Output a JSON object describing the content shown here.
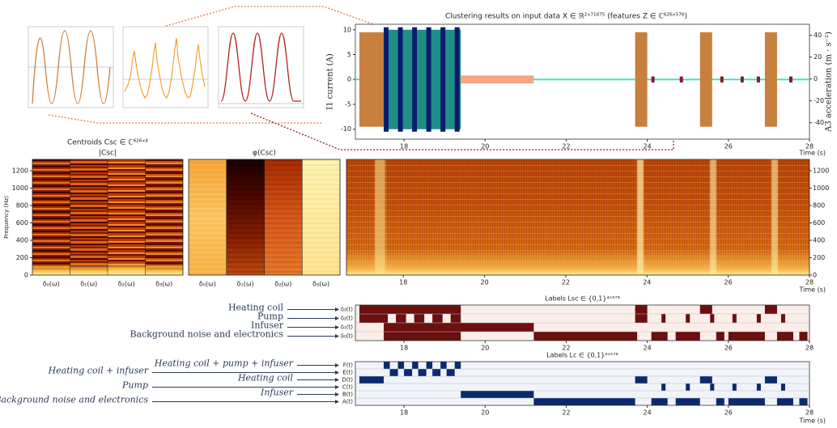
{
  "chart_data": [
    {
      "type": "signal",
      "title": "Clustering results on input data X ∈ ℝ²ˣ⁷¹⁸⁷⁵ (features Z ∈ ℂ⁶²⁶ˣ⁵⁷⁶)",
      "ylabel": "I1 current (A)",
      "y2label": "A3 acceleration (m · s⁻²)",
      "xlabel": "Time (s)",
      "xlim": [
        16.8,
        28
      ],
      "xticks": [
        18,
        20,
        22,
        24,
        26,
        28
      ],
      "ylim": [
        -12,
        11.1
      ],
      "yticks": [
        -10,
        -5,
        0,
        5,
        10
      ],
      "y2lim": [
        -55,
        50
      ],
      "y2ticks": [
        -40,
        -20,
        0,
        20,
        40
      ],
      "baseline": {
        "value": 0,
        "color": "#3ee6c4"
      },
      "bursts": [
        {
          "color": "#c8803f",
          "starts": [
            16.9,
            23.7,
            25.3,
            26.9
          ],
          "ends": [
            17.5,
            24.0,
            25.6,
            27.2
          ],
          "values": [
            9.5,
            9.5,
            9.5,
            9.5
          ]
        },
        {
          "color": "#1f8f86",
          "starts": [
            17.5
          ],
          "ends": [
            19.4
          ],
          "values": [
            10
          ]
        },
        {
          "color": "#0d1b6e",
          "starts": [
            17.5,
            17.85,
            18.2,
            18.55,
            18.9,
            19.25
          ],
          "ends": [
            17.62,
            17.97,
            18.32,
            18.67,
            19.02,
            19.37
          ],
          "values": [
            10.5,
            10.5,
            10.5,
            10.5,
            10.5,
            10.5
          ]
        },
        {
          "color": "#f4a582",
          "starts": [
            19.4
          ],
          "ends": [
            21.2
          ],
          "values": [
            0.8
          ]
        },
        {
          "color": "#8b1a1a",
          "starts": [
            24.1,
            24.8,
            25.8,
            26.3,
            26.7,
            27.5
          ],
          "ends": [
            24.18,
            24.88,
            25.88,
            26.38,
            26.78,
            27.58
          ],
          "values": [
            0.6,
            0.6,
            0.6,
            0.6,
            0.6,
            0.6
          ]
        }
      ]
    },
    {
      "type": "heatmap",
      "title": "Centroids Csc ∈ ℂ⁶²⁶ˣ⁴",
      "ylabel": "Frequency (Hz)",
      "ylim": [
        0,
        1330
      ],
      "yticks": [
        0,
        200,
        400,
        600,
        800,
        1000,
        1200
      ],
      "panels": [
        {
          "title": "|Csc|",
          "columns": [
            "δ₀(ω)",
            "δ₁(ω)",
            "δ₂(ω)",
            "δ₃(ω)"
          ]
        },
        {
          "title": "φ(Csc)",
          "columns": [
            "δ₀(ω)",
            "δ₁(ω)",
            "δ₂(ω)",
            "δ₃(ω)"
          ]
        }
      ]
    },
    {
      "type": "spectrogram",
      "xlabel": "Time (s)",
      "xlim": [
        16.6,
        28
      ],
      "xticks": [
        18,
        20,
        22,
        24,
        26,
        28
      ],
      "ylim": [
        0,
        1330
      ],
      "yticks": [
        0,
        200,
        400,
        600,
        800,
        1000,
        1200
      ]
    },
    {
      "type": "labels",
      "title": "Labels Lsc ∈ {0,1}⁴ˣ⁵⁷⁶",
      "xlim": [
        16.8,
        28
      ],
      "xticks": [
        18,
        20,
        22,
        24,
        26,
        28
      ],
      "color": "#6b0f0f",
      "background": "#fbeee9",
      "rows": [
        {
          "name": "δ₃(t)",
          "annotation": "Heating coil",
          "starts": [
            16.9,
            23.7,
            25.3,
            26.9
          ],
          "ends": [
            19.4,
            24.0,
            25.6,
            27.2
          ]
        },
        {
          "name": "δ₂(t)",
          "annotation": "Pump",
          "starts": [
            16.9,
            17.8,
            18.25,
            18.7,
            19.15,
            23.7,
            24.35,
            24.95,
            25.55,
            26.1,
            26.7,
            27.3
          ],
          "ends": [
            17.6,
            18.05,
            18.5,
            18.95,
            19.4,
            24.0,
            24.45,
            25.05,
            25.65,
            26.2,
            26.8,
            27.4
          ]
        },
        {
          "name": "δ₁(t)",
          "annotation": "Infuser",
          "starts": [
            17.5
          ],
          "ends": [
            21.2
          ]
        },
        {
          "name": "δ₀(t)",
          "annotation": "Background noise and electronics",
          "starts": [
            17.5,
            21.2,
            24.1,
            24.7,
            25.7,
            26.0,
            27.2,
            27.75
          ],
          "ends": [
            19.4,
            23.75,
            24.5,
            25.3,
            25.9,
            26.9,
            27.6,
            27.95
          ]
        }
      ]
    },
    {
      "type": "labels",
      "title": "Labels Lc ∈ {0,1}⁶ˣ⁵⁷⁶",
      "xlabel": "Time (s)",
      "xlim": [
        16.8,
        28
      ],
      "xticks": [
        18,
        20,
        22,
        24,
        26,
        28
      ],
      "color": "#0b2a6e",
      "background": "#f0f4fa",
      "rows": [
        {
          "name": "F(t)",
          "annotation": "Heating coil + pump + infuser",
          "starts": [
            17.5,
            17.85,
            18.2,
            18.55,
            18.9,
            19.25
          ],
          "ends": [
            17.65,
            18.0,
            18.35,
            18.7,
            19.05,
            19.4
          ]
        },
        {
          "name": "E(t)",
          "annotation": "Heating coil + infuser",
          "starts": [
            17.65,
            18.0,
            18.35,
            18.7,
            19.05
          ],
          "ends": [
            17.85,
            18.2,
            18.55,
            18.9,
            19.25
          ]
        },
        {
          "name": "D(t)",
          "annotation": "Heating coil",
          "starts": [
            16.9,
            23.7,
            25.3,
            26.9
          ],
          "ends": [
            17.5,
            24.0,
            25.6,
            27.2
          ]
        },
        {
          "name": "C(t)",
          "annotation": "Pump",
          "starts": [
            24.35,
            24.95,
            25.55,
            26.1,
            26.7,
            27.3
          ],
          "ends": [
            24.45,
            25.05,
            25.65,
            26.2,
            26.8,
            27.4
          ]
        },
        {
          "name": "B(t)",
          "annotation": "Infuser",
          "starts": [
            19.4
          ],
          "ends": [
            21.2
          ]
        },
        {
          "name": "A(t)",
          "annotation": "Background noise and electronics",
          "starts": [
            21.2,
            24.1,
            24.7,
            25.7,
            26.0,
            27.2,
            27.75
          ],
          "ends": [
            23.7,
            24.5,
            25.3,
            25.9,
            26.9,
            27.6,
            27.95
          ]
        }
      ]
    }
  ]
}
